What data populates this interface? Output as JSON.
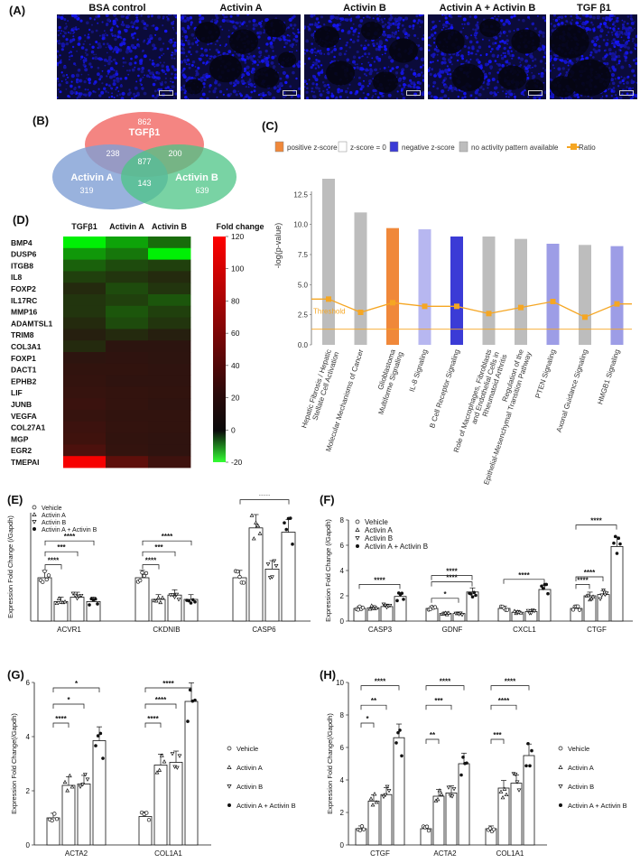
{
  "panel_labels": {
    "A": "(A)",
    "B": "(B)",
    "C": "(C)",
    "D": "(D)",
    "E": "(E)",
    "F": "(F)",
    "G": "(G)",
    "H": "(H)"
  },
  "panel_a": {
    "titles": [
      "BSA control",
      "Activin A",
      "Activin B",
      "Activin A + Activin B",
      "TGF β1"
    ]
  },
  "venn": {
    "sets": [
      "TGFβ1",
      "Activin A",
      "Activin B"
    ],
    "colors": [
      "#f2706c",
      "#7f9fd4",
      "#4cc486"
    ],
    "counts": {
      "tgfb1_only": "862",
      "tgfb1_a": "238",
      "all": "877",
      "tgfb1_b": "200",
      "a_only": "319",
      "a_b": "143",
      "b_only": "639"
    }
  },
  "ipa_legend": [
    "positive z-score",
    "z-score = 0",
    "negative z-score",
    "no activity pattern available",
    "Ratio"
  ],
  "ipa_colors": {
    "positive": "#f0883a",
    "zero": "#ffffff",
    "negative": "#3b3bd6",
    "noactivity": "#bdbdbd",
    "ratio": "#f5a623"
  },
  "heatmap_legend": {
    "title": "Fold change",
    "ticks": [
      "120",
      "100",
      "80",
      "60",
      "40",
      "20",
      "0",
      "-20"
    ]
  },
  "chart_data": [
    {
      "type": "bar",
      "panel": "C",
      "ylabel": "-log(p-value)",
      "y2label": "",
      "threshold_label": "Threshold",
      "ylim": [
        0,
        15
      ],
      "yticks": [
        "0.0",
        "2.5",
        "5.0",
        "7.5",
        "10.0",
        "12.5"
      ],
      "categories": [
        "Hepatic Fibrosis / Hepatic Stellate Cell Activation",
        "Molecular Mechanisms of Cancer",
        "Glioblastoma Multiforme Signaling",
        "IL-8 Signaling",
        "B Cell Receptor Signaling",
        "Role of Macrophages, Fibroblasts and Endothelial Cells in Rheumatoid Arthritis",
        "Regulation of the Epithelial-Mesenchymal Transition Pathway",
        "PTEN Signaling",
        "Axonal Guidance Signaling",
        "HMGB1 Signaling"
      ],
      "values": [
        13.8,
        11.0,
        9.7,
        9.6,
        9.0,
        9.0,
        8.8,
        8.4,
        8.3,
        8.2
      ],
      "bar_colors": [
        "#bdbdbd",
        "#bdbdbd",
        "#f0883a",
        "#b7b7f0",
        "#3b3bd6",
        "#bdbdbd",
        "#bdbdbd",
        "#9d9de6",
        "#bdbdbd",
        "#9d9de6"
      ],
      "ratio": [
        3.8,
        2.7,
        3.5,
        3.2,
        3.2,
        2.6,
        3.1,
        3.6,
        2.3,
        3.4
      ]
    },
    {
      "type": "heatmap",
      "panel": "D",
      "columns": [
        "TGFβ1",
        "Activin A",
        "Activin B"
      ],
      "rows": [
        "BMP4",
        "DUSP6",
        "ITGB8",
        "IL8",
        "FOXP2",
        "IL17RC",
        "MMP16",
        "ADAMTSL1",
        "TRIM8",
        "COL3A1",
        "FOXP1",
        "DACT1",
        "EPHB2",
        "LIF",
        "JUNB",
        "VEGFA",
        "COL27A1",
        "MGP",
        "EGR2",
        "TMEPAI"
      ],
      "values": [
        [
          -20,
          -13,
          -8
        ],
        [
          -12,
          -9,
          -20
        ],
        [
          -7,
          -5,
          -4
        ],
        [
          -4,
          -3,
          -2
        ],
        [
          -2,
          -5,
          -3
        ],
        [
          -3,
          -4,
          -6
        ],
        [
          -3,
          -6,
          -4
        ],
        [
          -2,
          -5,
          -3
        ],
        [
          -1,
          -2,
          -1
        ],
        [
          -2,
          2,
          2
        ],
        [
          3,
          4,
          3
        ],
        [
          5,
          5,
          4
        ],
        [
          6,
          4,
          4
        ],
        [
          8,
          6,
          5
        ],
        [
          10,
          6,
          4
        ],
        [
          8,
          5,
          5
        ],
        [
          11,
          6,
          5
        ],
        [
          13,
          5,
          4
        ],
        [
          20,
          6,
          4
        ],
        [
          115,
          30,
          12
        ]
      ],
      "range": [
        -20,
        120
      ]
    },
    {
      "type": "bar",
      "panel": "E",
      "ylabel": "Expression Fold Change (/Gapdh)",
      "ylim": [
        0,
        2.5
      ],
      "categories": [
        "ACVR1",
        "CKDNIB",
        "CASP6"
      ],
      "series": [
        {
          "name": "Vehicle",
          "values": [
            1.0,
            1.0,
            1.0
          ]
        },
        {
          "name": "Activin A",
          "values": [
            0.45,
            0.5,
            2.15
          ]
        },
        {
          "name": "Activin B",
          "values": [
            0.55,
            0.6,
            1.2
          ]
        },
        {
          "name": "Activin A + Activin B",
          "values": [
            0.45,
            0.5,
            2.05
          ]
        }
      ],
      "sig": [
        [
          "****",
          "***",
          "****"
        ],
        [
          "****",
          "***",
          "****"
        ],
        [
          "****"
        ]
      ]
    },
    {
      "type": "bar",
      "panel": "F",
      "ylabel": "Expression Fold Change (/Gapdh)",
      "ylim": [
        0,
        8
      ],
      "yticks": [
        "0",
        "2",
        "4",
        "6",
        "8"
      ],
      "categories": [
        "CASP3",
        "GDNF",
        "CXCL1",
        "CTGF"
      ],
      "series": [
        {
          "name": "Vehicle",
          "values": [
            1.0,
            1.0,
            1.0,
            1.0
          ]
        },
        {
          "name": "Activin A",
          "values": [
            1.05,
            0.6,
            0.7,
            2.0
          ]
        },
        {
          "name": "Activin B",
          "values": [
            1.15,
            0.6,
            0.75,
            2.1
          ]
        },
        {
          "name": "Activin A + Activin B",
          "values": [
            1.95,
            2.3,
            2.5,
            5.9
          ]
        }
      ]
    },
    {
      "type": "bar",
      "panel": "G",
      "ylabel": "Expression Fold Change(/Gapdh)",
      "ylim": [
        0,
        6
      ],
      "yticks": [
        "0",
        "2",
        "4",
        "6"
      ],
      "categories": [
        "ACTA2",
        "COL1A1"
      ],
      "series": [
        {
          "name": "Vehicle",
          "values": [
            1.0,
            1.05
          ]
        },
        {
          "name": "Activin A",
          "values": [
            2.2,
            2.95
          ]
        },
        {
          "name": "Activin B",
          "values": [
            2.25,
            3.05
          ]
        },
        {
          "name": "Activin A + Activin B",
          "values": [
            3.85,
            5.3
          ]
        }
      ]
    },
    {
      "type": "bar",
      "panel": "H",
      "ylabel": "Expression Fold Change(/Gapdh)",
      "ylim": [
        0,
        10
      ],
      "yticks": [
        "0",
        "2",
        "4",
        "6",
        "8",
        "10"
      ],
      "categories": [
        "CTGF",
        "ACTA2",
        "COL1A1"
      ],
      "series": [
        {
          "name": "Vehicle",
          "values": [
            1.0,
            1.0,
            1.0
          ]
        },
        {
          "name": "Activin A",
          "values": [
            2.7,
            3.0,
            3.5
          ]
        },
        {
          "name": "Activin B",
          "values": [
            3.1,
            3.2,
            3.8
          ]
        },
        {
          "name": "Activin A + Activin B",
          "values": [
            6.6,
            5.0,
            5.5
          ]
        }
      ]
    }
  ],
  "legend_series": [
    "Vehicle",
    "Activin A",
    "Activin B",
    "Activin A + Activin B"
  ],
  "sig_labels": {
    "E": [
      "****",
      "***",
      "****",
      "****",
      "***",
      "****",
      "****"
    ],
    "F": [
      "****",
      "*",
      "****",
      "****",
      "****",
      "****",
      "****"
    ],
    "G": [
      "****",
      "*",
      "*",
      "****",
      "****",
      "****"
    ],
    "H": [
      "****",
      "**",
      "*",
      "****",
      "***",
      "**",
      "****",
      "****",
      "***"
    ]
  }
}
